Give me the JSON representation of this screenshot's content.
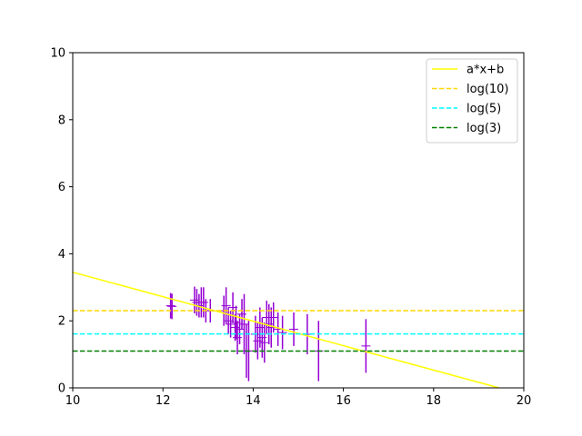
{
  "chart_data": {
    "type": "scatter",
    "xlim": [
      10,
      20
    ],
    "ylim": [
      0,
      10
    ],
    "x_ticks": [
      10,
      12,
      14,
      16,
      18,
      20
    ],
    "y_ticks": [
      0,
      2,
      4,
      6,
      8,
      10
    ],
    "grid": false,
    "legend_position": "top-right",
    "error_color": "#9400D3",
    "points": [
      {
        "x": 12.17,
        "y": 2.45,
        "err": 0.38
      },
      {
        "x": 12.2,
        "y": 2.43,
        "err": 0.38
      },
      {
        "x": 12.7,
        "y": 2.62,
        "err": 0.4
      },
      {
        "x": 12.75,
        "y": 2.55,
        "err": 0.4
      },
      {
        "x": 12.8,
        "y": 2.45,
        "err": 0.35
      },
      {
        "x": 12.85,
        "y": 2.55,
        "err": 0.45
      },
      {
        "x": 12.9,
        "y": 2.55,
        "err": 0.45
      },
      {
        "x": 12.95,
        "y": 2.3,
        "err": 0.35
      },
      {
        "x": 13.05,
        "y": 2.3,
        "err": 0.35
      },
      {
        "x": 13.35,
        "y": 2.3,
        "err": 0.45
      },
      {
        "x": 13.4,
        "y": 2.45,
        "err": 0.55
      },
      {
        "x": 13.45,
        "y": 2.0,
        "err": 0.4
      },
      {
        "x": 13.5,
        "y": 1.9,
        "err": 0.4
      },
      {
        "x": 13.55,
        "y": 2.4,
        "err": 0.45
      },
      {
        "x": 13.6,
        "y": 1.8,
        "err": 0.4
      },
      {
        "x": 13.62,
        "y": 1.95,
        "err": 0.5
      },
      {
        "x": 13.65,
        "y": 1.5,
        "err": 0.5
      },
      {
        "x": 13.7,
        "y": 1.75,
        "err": 0.45
      },
      {
        "x": 13.75,
        "y": 2.2,
        "err": 0.45
      },
      {
        "x": 13.8,
        "y": 1.9,
        "err": 0.9
      },
      {
        "x": 13.85,
        "y": 1.1,
        "err": 0.8
      },
      {
        "x": 13.9,
        "y": 1.1,
        "err": 0.9
      },
      {
        "x": 14.05,
        "y": 1.6,
        "err": 0.55
      },
      {
        "x": 14.1,
        "y": 1.4,
        "err": 0.55
      },
      {
        "x": 14.15,
        "y": 1.8,
        "err": 0.6
      },
      {
        "x": 14.2,
        "y": 1.5,
        "err": 0.6
      },
      {
        "x": 14.25,
        "y": 1.35,
        "err": 0.6
      },
      {
        "x": 14.3,
        "y": 2.1,
        "err": 0.5
      },
      {
        "x": 14.35,
        "y": 1.9,
        "err": 0.6
      },
      {
        "x": 14.4,
        "y": 1.8,
        "err": 0.6
      },
      {
        "x": 14.45,
        "y": 2.1,
        "err": 0.45
      },
      {
        "x": 14.55,
        "y": 1.75,
        "err": 0.5
      },
      {
        "x": 14.65,
        "y": 1.65,
        "err": 0.5
      },
      {
        "x": 14.9,
        "y": 1.75,
        "err": 0.5
      },
      {
        "x": 15.2,
        "y": 1.6,
        "err": 0.6
      },
      {
        "x": 15.45,
        "y": 1.1,
        "err": 0.9
      },
      {
        "x": 16.5,
        "y": 1.25,
        "err": 0.8
      }
    ],
    "series": [
      {
        "name": "a*x+b",
        "kind": "line",
        "style": "solid",
        "color": "#FFFF00",
        "x": [
          10,
          19.45
        ],
        "y": [
          3.45,
          0
        ]
      },
      {
        "name": "log(10)",
        "kind": "hline",
        "style": "dashed",
        "color": "#FFD700",
        "y": 2.302585
      },
      {
        "name": "log(5)",
        "kind": "hline",
        "style": "dashed",
        "color": "#00FFFF",
        "y": 1.609438
      },
      {
        "name": "log(3)",
        "kind": "hline",
        "style": "dashed",
        "color": "#008000",
        "y": 1.098612
      }
    ]
  }
}
